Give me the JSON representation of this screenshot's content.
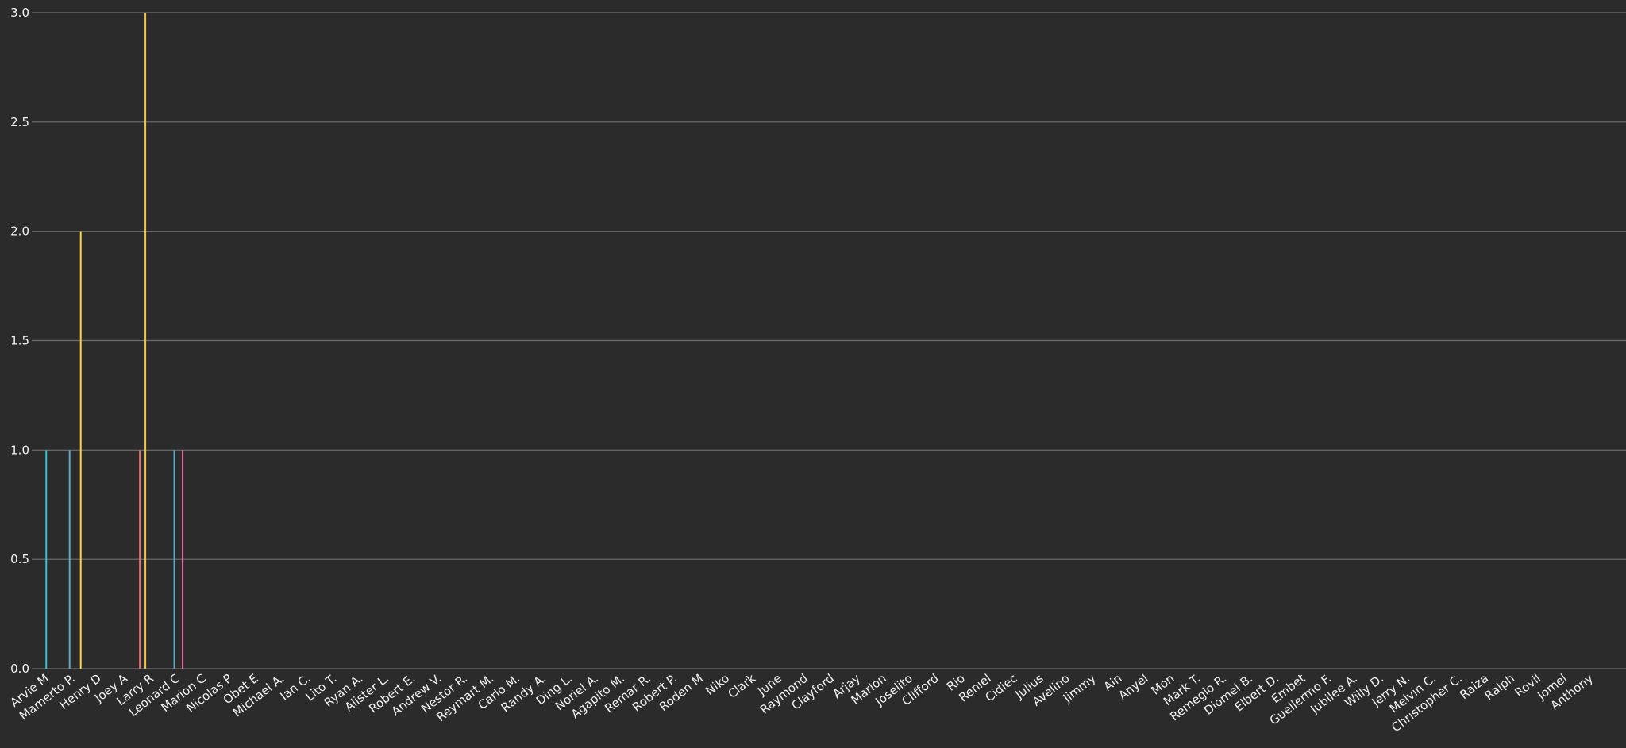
{
  "chart_data": {
    "type": "bar",
    "title": "",
    "xlabel": "",
    "ylabel": "",
    "ylim": [
      0,
      3
    ],
    "yticks": [
      "0.0",
      "0.5",
      "1.0",
      "1.5",
      "2.0",
      "2.5",
      "3.0"
    ],
    "grid": true,
    "legend": "none",
    "categories": [
      "Arvie M",
      "Mamerto P.",
      "Henry D",
      "Joey A",
      "Larry R",
      "Leonard C",
      "Marion C",
      "Nicolas P",
      "Obet E",
      "Michael A.",
      "Ian C.",
      "Lito T.",
      "Ryan A.",
      "Alister L.",
      "Robert E.",
      "Andrew V.",
      "Nestor R.",
      "Reymart M.",
      "Carlo M.",
      "Randy A.",
      "Ding L.",
      "Noriel A.",
      "Agapito M.",
      "Remar R.",
      "Robert P.",
      "Roden M",
      "Niko",
      "Clark",
      "June",
      "Raymond",
      "Clayford",
      "Arjay",
      "Marlon",
      "Joselito",
      "Clifford",
      "Rio",
      "Reniel",
      "Cidiec",
      "Julius",
      "Avelino",
      "Jimmy",
      "Ain",
      "Anyel",
      "Mon",
      "Mark T.",
      "Remegio R.",
      "Diomel B.",
      "Elbert D.",
      "Embet",
      "Guellermo F.",
      "Jubilee A.",
      "Willy D.",
      "Jerry N.",
      "Melvin C.",
      "Christopher C.",
      "Raiza",
      "Ralph",
      "Rovil",
      "Jomel",
      "Anthony"
    ],
    "series": [
      {
        "color": "#f06a6a",
        "values": [
          0,
          0,
          0,
          0,
          1,
          0,
          0,
          0,
          0,
          0,
          0,
          0,
          0,
          0,
          0,
          0,
          0,
          0,
          0,
          0,
          0,
          0,
          0,
          0,
          0,
          0,
          0,
          0,
          0,
          0,
          0,
          0,
          0,
          0,
          0,
          0,
          0,
          0,
          0,
          0,
          0,
          0,
          0,
          0,
          0,
          0,
          0,
          0,
          0,
          0,
          0,
          0,
          0,
          0,
          0,
          0,
          0,
          0,
          0,
          0
        ]
      },
      {
        "color": "#e8944a",
        "values": [
          0,
          0,
          0,
          0,
          0,
          0,
          0,
          0,
          0,
          0,
          0,
          0,
          0,
          0,
          0,
          0,
          0,
          0,
          0,
          0,
          0,
          0,
          0,
          0,
          0,
          0,
          0,
          0,
          0,
          0,
          0,
          0,
          0,
          0,
          0,
          0,
          0,
          0,
          0,
          0,
          0,
          0,
          0,
          0,
          0,
          0,
          0,
          0,
          0,
          0,
          0,
          0,
          0,
          0,
          0,
          0,
          0,
          0,
          0,
          0
        ]
      },
      {
        "color": "#f5c542",
        "values": [
          0,
          0,
          0,
          0,
          3,
          0,
          0,
          0,
          0,
          0,
          0,
          0,
          0,
          0,
          0,
          0,
          0,
          0,
          0,
          0,
          0,
          0,
          0,
          0,
          0,
          0,
          0,
          0,
          0,
          0,
          0,
          0,
          0,
          0,
          0,
          0,
          0,
          0,
          0,
          0,
          0,
          0,
          0,
          0,
          0,
          0,
          0,
          0,
          0,
          0,
          0,
          0,
          0,
          0,
          0,
          0,
          0,
          0,
          0,
          0
        ]
      },
      {
        "color": "#5fa8c8",
        "values": [
          0,
          1,
          0,
          0,
          0,
          1,
          0,
          0,
          0,
          0,
          0,
          0,
          0,
          0,
          0,
          0,
          0,
          0,
          0,
          0,
          0,
          0,
          0,
          0,
          0,
          0,
          0,
          0,
          0,
          0,
          0,
          0,
          0,
          0,
          0,
          0,
          0,
          0,
          0,
          0,
          0,
          0,
          0,
          0,
          0,
          0,
          0,
          0,
          0,
          0,
          0,
          0,
          0,
          0,
          0,
          0,
          0,
          0,
          0,
          0
        ]
      },
      {
        "color": "#2ec4d6",
        "values": [
          1,
          0,
          0,
          0,
          0,
          0,
          0,
          0,
          0,
          0,
          0,
          0,
          0,
          0,
          0,
          0,
          0,
          0,
          0,
          0,
          0,
          0,
          0,
          0,
          0,
          0,
          0,
          0,
          0,
          0,
          0,
          0,
          0,
          0,
          0,
          0,
          0,
          0,
          0,
          0,
          0,
          0,
          0,
          0,
          0,
          0,
          0,
          0,
          0,
          0,
          0,
          0,
          0,
          0,
          0,
          0,
          0,
          0,
          0,
          0
        ]
      },
      {
        "color": "#b06ad0",
        "values": [
          0,
          0,
          0,
          0,
          0,
          0,
          0,
          0,
          0,
          0,
          0,
          0,
          0,
          0,
          0,
          0,
          0,
          0,
          0,
          0,
          0,
          0,
          0,
          0,
          0,
          0,
          0,
          0,
          0,
          0,
          0,
          0,
          0,
          0,
          0,
          0,
          0,
          0,
          0,
          0,
          0,
          0,
          0,
          0,
          0,
          0,
          0,
          0,
          0,
          0,
          0,
          0,
          0,
          0,
          0,
          0,
          0,
          0,
          0,
          0
        ]
      },
      {
        "color": "#e86fa8",
        "values": [
          0,
          0,
          0,
          0,
          0,
          1,
          0,
          0,
          0,
          0,
          0,
          0,
          0,
          0,
          0,
          0,
          0,
          0,
          0,
          0,
          0,
          0,
          0,
          0,
          0,
          0,
          0,
          0,
          0,
          0,
          0,
          0,
          0,
          0,
          0,
          0,
          0,
          0,
          0,
          0,
          0,
          0,
          0,
          0,
          0,
          0,
          0,
          0,
          0,
          0,
          0,
          0,
          0,
          0,
          0,
          0,
          0,
          0,
          0,
          0
        ]
      },
      {
        "color": "#ffd23f",
        "values": [
          0,
          2,
          0,
          0,
          0,
          0,
          0,
          0,
          0,
          0,
          0,
          0,
          0,
          0,
          0,
          0,
          0,
          0,
          0,
          0,
          0,
          0,
          0,
          0,
          0,
          0,
          0,
          0,
          0,
          0,
          0,
          0,
          0,
          0,
          0,
          0,
          0,
          0,
          0,
          0,
          0,
          0,
          0,
          0,
          0,
          0,
          0,
          0,
          0,
          0,
          0,
          0,
          0,
          0,
          0,
          0,
          0,
          0,
          0,
          0
        ]
      }
    ]
  }
}
